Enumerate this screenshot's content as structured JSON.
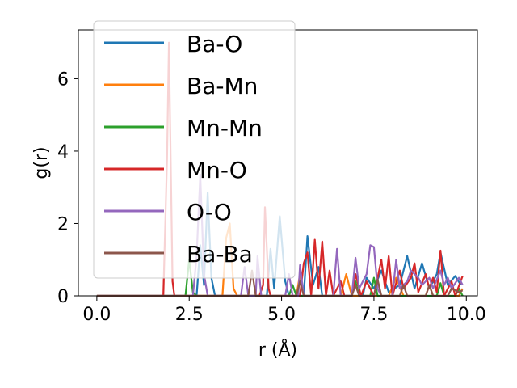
{
  "chart_data": {
    "type": "line",
    "xlabel": "r (Å)",
    "ylabel": "g(r)",
    "xlim": [
      -0.5,
      10.3
    ],
    "ylim": [
      0,
      7.35
    ],
    "xticks": [
      0.0,
      2.5,
      5.0,
      7.5,
      10.0
    ],
    "xtick_labels": [
      "0.0",
      "2.5",
      "5.0",
      "7.5",
      "10.0"
    ],
    "yticks": [
      0,
      2,
      4,
      6
    ],
    "ytick_labels": [
      "0",
      "2",
      "4",
      "6"
    ],
    "grid": false,
    "legend_position": "upper-left",
    "series": [
      {
        "name": "Ba-O",
        "color": "#1f77b4",
        "points": [
          [
            0,
            0
          ],
          [
            2.7,
            0
          ],
          [
            2.8,
            1.4
          ],
          [
            2.9,
            0.3
          ],
          [
            3.0,
            2.85
          ],
          [
            3.1,
            0.5
          ],
          [
            3.2,
            0
          ],
          [
            4.6,
            0
          ],
          [
            4.7,
            1.3
          ],
          [
            4.8,
            0.2
          ],
          [
            4.95,
            2.2
          ],
          [
            5.1,
            0.4
          ],
          [
            5.2,
            0
          ],
          [
            5.6,
            0
          ],
          [
            5.7,
            1.65
          ],
          [
            5.85,
            0.3
          ],
          [
            6.0,
            0.8
          ],
          [
            6.1,
            0
          ],
          [
            7.2,
            0
          ],
          [
            7.3,
            0.5
          ],
          [
            7.5,
            0.2
          ],
          [
            7.7,
            0.7
          ],
          [
            7.9,
            0.1
          ],
          [
            8.2,
            0.3
          ],
          [
            8.4,
            1.1
          ],
          [
            8.6,
            0.2
          ],
          [
            8.8,
            0.9
          ],
          [
            9.0,
            0.2
          ],
          [
            9.2,
            0.6
          ],
          [
            9.3,
            1.2
          ],
          [
            9.5,
            0.3
          ],
          [
            9.7,
            0.55
          ],
          [
            9.85,
            0.3
          ]
        ]
      },
      {
        "name": "Ba-Mn",
        "color": "#ff7f0e",
        "points": [
          [
            0,
            0
          ],
          [
            3.4,
            0
          ],
          [
            3.5,
            1.6
          ],
          [
            3.6,
            2.0
          ],
          [
            3.7,
            0.2
          ],
          [
            3.8,
            0
          ],
          [
            5.4,
            0
          ],
          [
            5.5,
            0.6
          ],
          [
            5.6,
            0
          ],
          [
            6.6,
            0
          ],
          [
            6.75,
            0.6
          ],
          [
            6.9,
            0
          ],
          [
            7.9,
            0
          ],
          [
            8.1,
            0.5
          ],
          [
            8.3,
            0
          ],
          [
            8.9,
            0
          ],
          [
            9.0,
            0.3
          ],
          [
            9.1,
            0
          ],
          [
            9.8,
            0
          ],
          [
            9.9,
            0.2
          ]
        ]
      },
      {
        "name": "Mn-Mn",
        "color": "#2ca02c",
        "points": [
          [
            0,
            0
          ],
          [
            2.4,
            0
          ],
          [
            2.5,
            1.0
          ],
          [
            2.6,
            0.1
          ],
          [
            2.7,
            0
          ],
          [
            5.2,
            0
          ],
          [
            5.3,
            0.3
          ],
          [
            5.4,
            0
          ],
          [
            6.9,
            0
          ],
          [
            7.0,
            0.4
          ],
          [
            7.1,
            0
          ],
          [
            7.4,
            0
          ],
          [
            7.5,
            0.5
          ],
          [
            7.6,
            0
          ],
          [
            9.2,
            0
          ],
          [
            9.3,
            0.35
          ],
          [
            9.4,
            0
          ],
          [
            9.7,
            0
          ],
          [
            9.8,
            0.2
          ],
          [
            9.9,
            0
          ]
        ]
      },
      {
        "name": "Mn-O",
        "color": "#d62728",
        "points": [
          [
            0,
            0
          ],
          [
            1.8,
            0
          ],
          [
            1.9,
            3.8
          ],
          [
            1.95,
            7.0
          ],
          [
            2.05,
            0.4
          ],
          [
            2.1,
            0
          ],
          [
            4.4,
            0
          ],
          [
            4.5,
            0.3
          ],
          [
            4.55,
            2.45
          ],
          [
            4.65,
            0.2
          ],
          [
            4.7,
            0
          ],
          [
            5.5,
            0
          ],
          [
            5.6,
            0.9
          ],
          [
            5.7,
            1.2
          ],
          [
            5.8,
            0
          ],
          [
            5.9,
            1.55
          ],
          [
            6.0,
            0.2
          ],
          [
            6.1,
            1.5
          ],
          [
            6.2,
            0
          ],
          [
            6.3,
            0.7
          ],
          [
            6.4,
            0
          ],
          [
            6.6,
            0.4
          ],
          [
            6.7,
            0
          ],
          [
            6.9,
            0
          ],
          [
            7.0,
            0.6
          ],
          [
            7.15,
            0
          ],
          [
            7.3,
            0.4
          ],
          [
            7.5,
            0
          ],
          [
            7.7,
            1.0
          ],
          [
            7.8,
            0.2
          ],
          [
            7.9,
            1.1
          ],
          [
            8.0,
            0
          ],
          [
            8.2,
            0.7
          ],
          [
            8.3,
            0.2
          ],
          [
            8.5,
            0.5
          ],
          [
            8.6,
            0.9
          ],
          [
            8.7,
            0.1
          ],
          [
            8.9,
            0.6
          ],
          [
            9.0,
            0.2
          ],
          [
            9.1,
            0.5
          ],
          [
            9.2,
            0.1
          ],
          [
            9.3,
            1.25
          ],
          [
            9.4,
            0
          ],
          [
            9.6,
            0.4
          ],
          [
            9.7,
            0
          ],
          [
            9.9,
            0.55
          ]
        ]
      },
      {
        "name": "O-O",
        "color": "#9467bd",
        "points": [
          [
            0,
            0
          ],
          [
            2.6,
            0
          ],
          [
            2.7,
            1.1
          ],
          [
            2.8,
            3.35
          ],
          [
            2.9,
            0.6
          ],
          [
            3.0,
            0
          ],
          [
            3.9,
            0
          ],
          [
            4.0,
            0.8
          ],
          [
            4.1,
            0
          ],
          [
            4.3,
            0
          ],
          [
            4.35,
            1.1
          ],
          [
            4.45,
            0
          ],
          [
            5.1,
            0
          ],
          [
            5.2,
            0.6
          ],
          [
            5.3,
            0
          ],
          [
            5.45,
            0
          ],
          [
            5.5,
            0.85
          ],
          [
            5.6,
            0
          ],
          [
            6.4,
            0
          ],
          [
            6.5,
            1.3
          ],
          [
            6.6,
            0
          ],
          [
            6.9,
            0
          ],
          [
            7.0,
            1.05
          ],
          [
            7.1,
            0.2
          ],
          [
            7.3,
            0.6
          ],
          [
            7.4,
            1.4
          ],
          [
            7.5,
            1.35
          ],
          [
            7.6,
            0.2
          ],
          [
            7.7,
            0
          ],
          [
            8.0,
            0
          ],
          [
            8.1,
            1.0
          ],
          [
            8.2,
            0.2
          ],
          [
            8.4,
            0.4
          ],
          [
            8.5,
            0.7
          ],
          [
            8.6,
            0.6
          ],
          [
            8.7,
            0.5
          ],
          [
            8.8,
            0.3
          ],
          [
            9.0,
            0.5
          ],
          [
            9.1,
            0.2
          ],
          [
            9.3,
            0.7
          ],
          [
            9.4,
            0.3
          ],
          [
            9.5,
            0.5
          ],
          [
            9.6,
            0.2
          ],
          [
            9.8,
            0.5
          ],
          [
            9.9,
            0.3
          ]
        ]
      },
      {
        "name": "Ba-Ba",
        "color": "#8c564b",
        "points": [
          [
            0,
            0
          ],
          [
            4.1,
            0
          ],
          [
            4.2,
            0.7
          ],
          [
            4.3,
            0
          ],
          [
            5.4,
            0
          ],
          [
            5.5,
            0.4
          ],
          [
            5.6,
            0
          ],
          [
            6.9,
            0
          ],
          [
            7.0,
            0.3
          ],
          [
            7.1,
            0
          ],
          [
            7.5,
            0
          ],
          [
            7.6,
            0.45
          ],
          [
            7.7,
            0
          ],
          [
            8.2,
            0
          ],
          [
            8.3,
            0.3
          ],
          [
            8.4,
            0
          ],
          [
            8.9,
            0
          ],
          [
            9.0,
            0.3
          ],
          [
            9.1,
            0
          ],
          [
            9.5,
            0
          ],
          [
            9.6,
            0.2
          ],
          [
            9.8,
            0.1
          ],
          [
            9.9,
            0.15
          ]
        ]
      }
    ]
  }
}
